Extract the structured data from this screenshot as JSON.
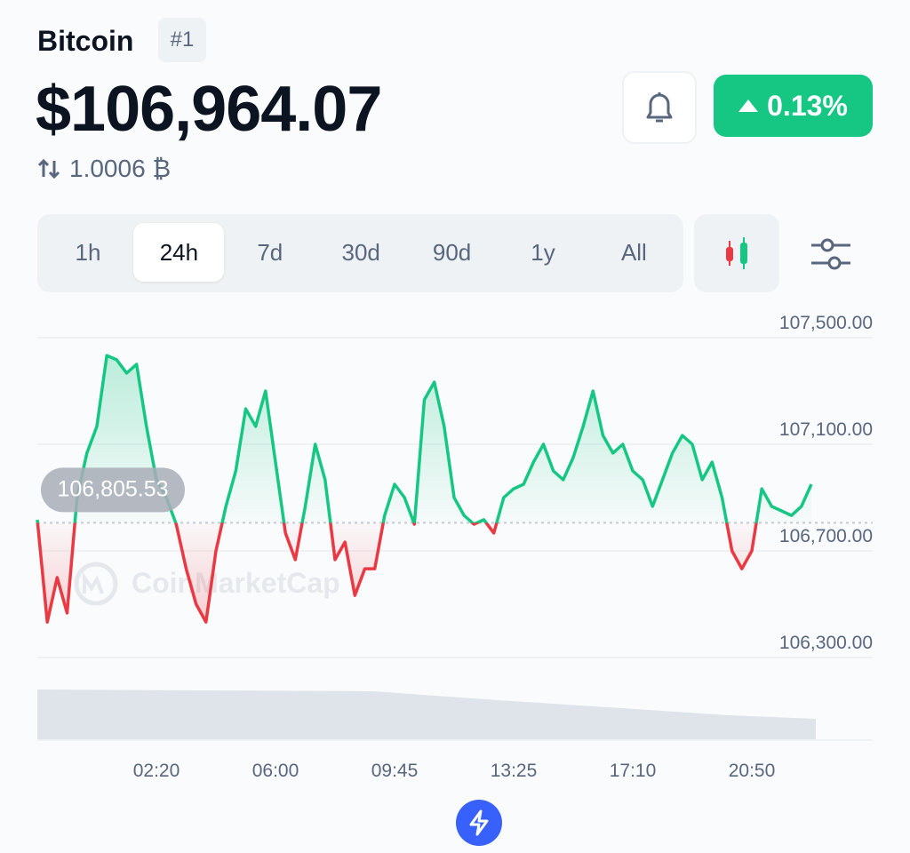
{
  "header": {
    "name": "Bitcoin",
    "rank": "#1",
    "price": "$106,964.07",
    "btc_amount": "1.0006 ₿",
    "change": "0.13%"
  },
  "tabs": [
    "1h",
    "24h",
    "7d",
    "30d",
    "90d",
    "1y",
    "All"
  ],
  "selected_tab": 1,
  "watermark": "CoinMarketCap",
  "chart_data": {
    "type": "line",
    "values": [
      106817,
      106433,
      106600,
      106467,
      106900,
      107067,
      107167,
      107433,
      107417,
      107367,
      107400,
      107167,
      106967,
      106900,
      106800,
      106633,
      106500,
      106433,
      106700,
      106867,
      107000,
      107233,
      107167,
      107300,
      107033,
      106767,
      106667,
      106867,
      107100,
      106967,
      106667,
      106733,
      106533,
      106633,
      106633,
      106833,
      106950,
      106900,
      106800,
      107267,
      107333,
      107167,
      106900,
      106833,
      106800,
      106817,
      106767,
      106900,
      106933,
      106950,
      107033,
      107100,
      107000,
      106967,
      107050,
      107167,
      107300,
      107133,
      107067,
      107100,
      107000,
      106967,
      106867,
      106967,
      107067,
      107133,
      107100,
      106967,
      107033,
      106900,
      106700,
      106633,
      106700,
      106933,
      106867,
      106850,
      106833,
      106867,
      106950
    ],
    "baseline": {
      "value": 106805.53,
      "label": "106,805.53"
    },
    "xlim": [
      0,
      78
    ],
    "xticks": [
      {
        "value": 12,
        "label": "02:20"
      },
      {
        "value": 24,
        "label": "06:00"
      },
      {
        "value": 36,
        "label": "09:45"
      },
      {
        "value": 48,
        "label": "13:25"
      },
      {
        "value": 60,
        "label": "17:10"
      },
      {
        "value": 72,
        "label": "20:50"
      }
    ],
    "ylim": [
      106300,
      107500
    ],
    "yticks": [
      {
        "value": 106300,
        "label": "106,300.00"
      },
      {
        "value": 106700,
        "label": "106,700.00"
      },
      {
        "value": 107100,
        "label": "107,100.00"
      },
      {
        "value": 107500,
        "label": "107,500.00"
      }
    ],
    "up_color": "#16c784",
    "down_color": "#ea3943",
    "grid": true
  }
}
